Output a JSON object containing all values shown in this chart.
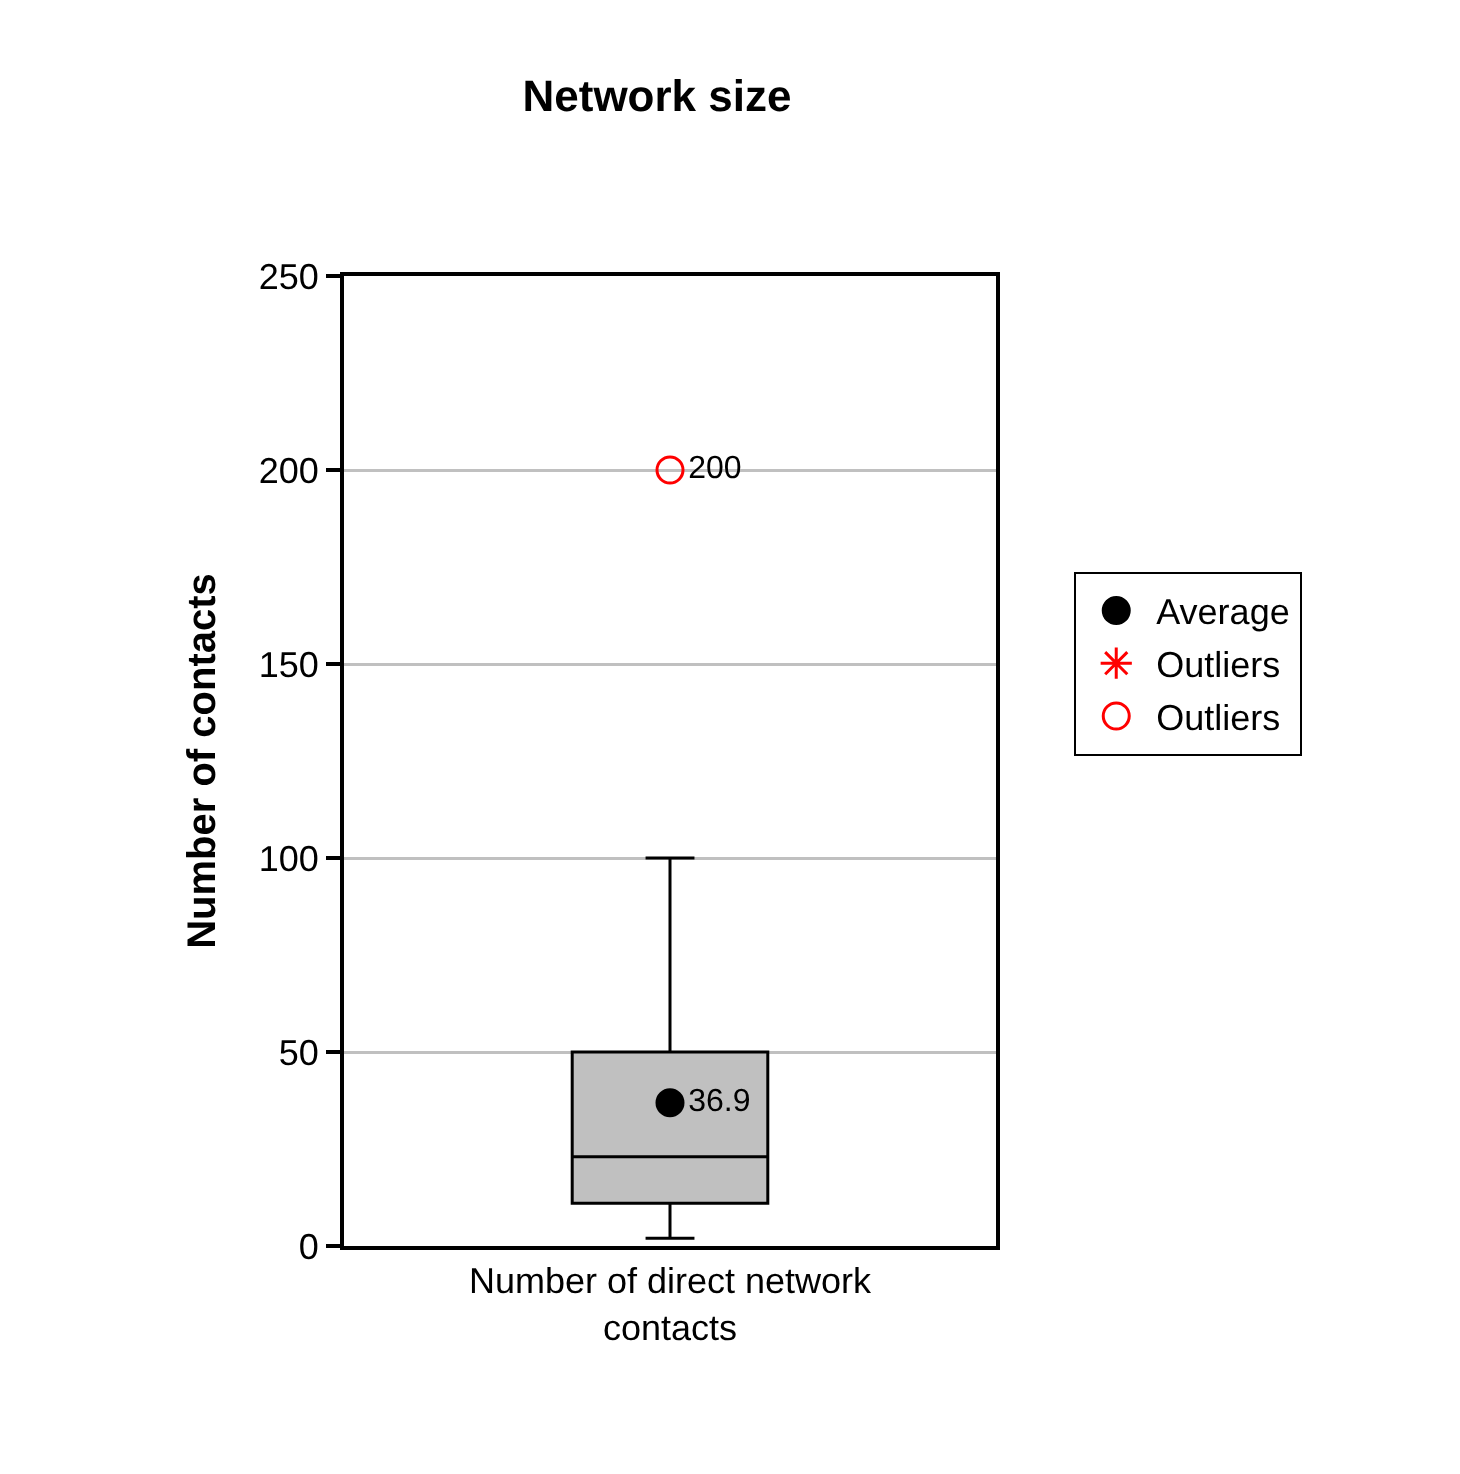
{
  "chart_data": {
    "type": "box",
    "title": "Network size",
    "ylabel": "Number of contacts",
    "categories": [
      "Number of direct network contacts"
    ],
    "boxes": [
      {
        "low": 2,
        "q1": 11,
        "median": 23,
        "q3": 50,
        "high": 100
      }
    ],
    "color": "#c0c0c0",
    "series": [
      {
        "type": "scatter",
        "name": "Average",
        "color": "#000000",
        "marker": "circle",
        "values": [
          36.9
        ],
        "value_labels": [
          "36.9"
        ]
      },
      {
        "type": "scatter",
        "name": "Outliers",
        "color": "#ff0000",
        "marker": "cross",
        "values": [
          null
        ]
      },
      {
        "type": "scatter",
        "name": "Outliers",
        "color": "#ff0000",
        "marker": "circle-open",
        "values": [
          200
        ],
        "value_labels": [
          "200"
        ]
      }
    ],
    "ylim": [
      0,
      250
    ],
    "yticks": [
      0,
      50,
      100,
      150,
      200,
      250
    ],
    "grid": "y",
    "legend": "right"
  }
}
